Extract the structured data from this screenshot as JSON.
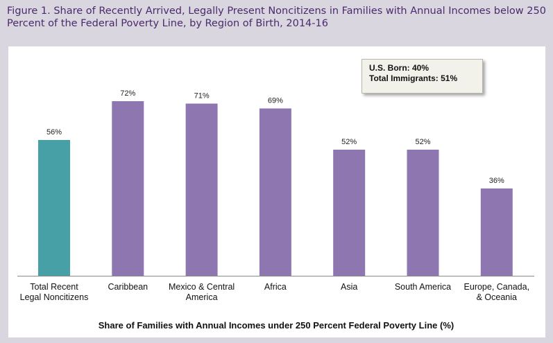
{
  "figure_title": "Figure 1. Share of Recently Arrived, Legally Present Noncitizens in Families with Annual Incomes below 250 Percent of the Federal Poverty Line, by Region of Birth, 2014-16",
  "callout": {
    "line1": "U.S. Born: 40%",
    "line2": "Total Immigrants: 51%"
  },
  "colors": {
    "highlight": "#47a0a6",
    "bars": "#8e77b1",
    "title": "#4a2a6b",
    "background": "#d9d6e0"
  },
  "chart_data": {
    "type": "bar",
    "title": "Figure 1. Share of Recently Arrived, Legally Present Noncitizens in Families with Annual Incomes below 250 Percent of the Federal Poverty Line, by Region of Birth, 2014-16",
    "xlabel": "Share of Families with Annual Incomes under 250 Percent Federal Poverty Line (%)",
    "ylabel": "",
    "ylim": [
      0,
      80
    ],
    "grid": false,
    "categories": [
      [
        "Total Recent",
        "Legal Noncitizens"
      ],
      [
        "Caribbean"
      ],
      [
        "Mexico & Central",
        "America"
      ],
      [
        "Africa"
      ],
      [
        "Asia"
      ],
      [
        "South America"
      ],
      [
        "Europe, Canada,",
        "& Oceania"
      ]
    ],
    "values": [
      56,
      72,
      71,
      69,
      52,
      52,
      36
    ],
    "data_labels": [
      "56%",
      "72%",
      "71%",
      "69%",
      "52%",
      "52%",
      "36%"
    ],
    "highlight_index": 0
  }
}
